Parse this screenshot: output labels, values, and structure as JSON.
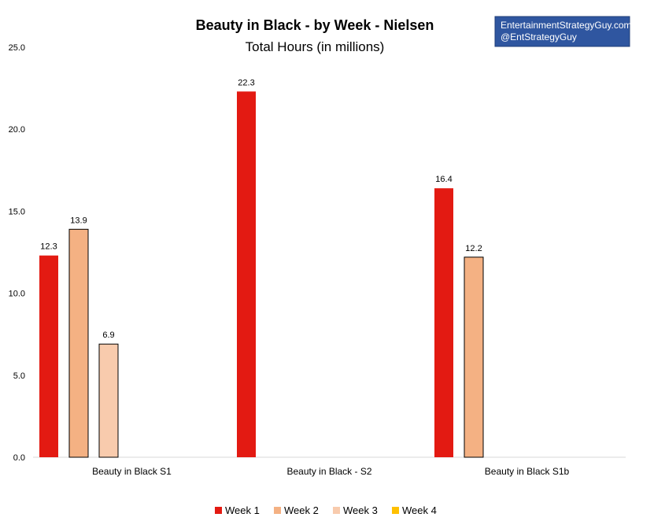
{
  "branding": {
    "line1": "EntertainmentStrategyGuy.com",
    "line2": "@EntStrategyGuy",
    "bg_color": "#2f56a0"
  },
  "chart_data": {
    "type": "bar",
    "title": "Beauty in Black - by Week - Nielsen",
    "subtitle": "Total Hours (in millions)",
    "categories": [
      "Beauty in Black S1",
      "Beauty in Black - S2",
      "Beauty in Black S1b"
    ],
    "series": [
      {
        "name": "Week 1",
        "color": "#e31a12",
        "values": [
          12.3,
          22.3,
          16.4
        ]
      },
      {
        "name": "Week 2",
        "color": "#f4b183",
        "values": [
          13.9,
          null,
          12.2
        ]
      },
      {
        "name": "Week 3",
        "color": "#f8cbad",
        "values": [
          6.9,
          null,
          null
        ]
      },
      {
        "name": "Week 4",
        "color": "#ffc000",
        "values": [
          null,
          null,
          null
        ]
      }
    ],
    "ylim": [
      0,
      25
    ],
    "yticks": [
      "0.0",
      "5.0",
      "10.0",
      "15.0",
      "20.0",
      "25.0"
    ],
    "ytick_values": [
      0,
      5,
      10,
      15,
      20,
      25
    ],
    "grid": false,
    "legend_position": "bottom",
    "xlabel": "",
    "ylabel": ""
  }
}
